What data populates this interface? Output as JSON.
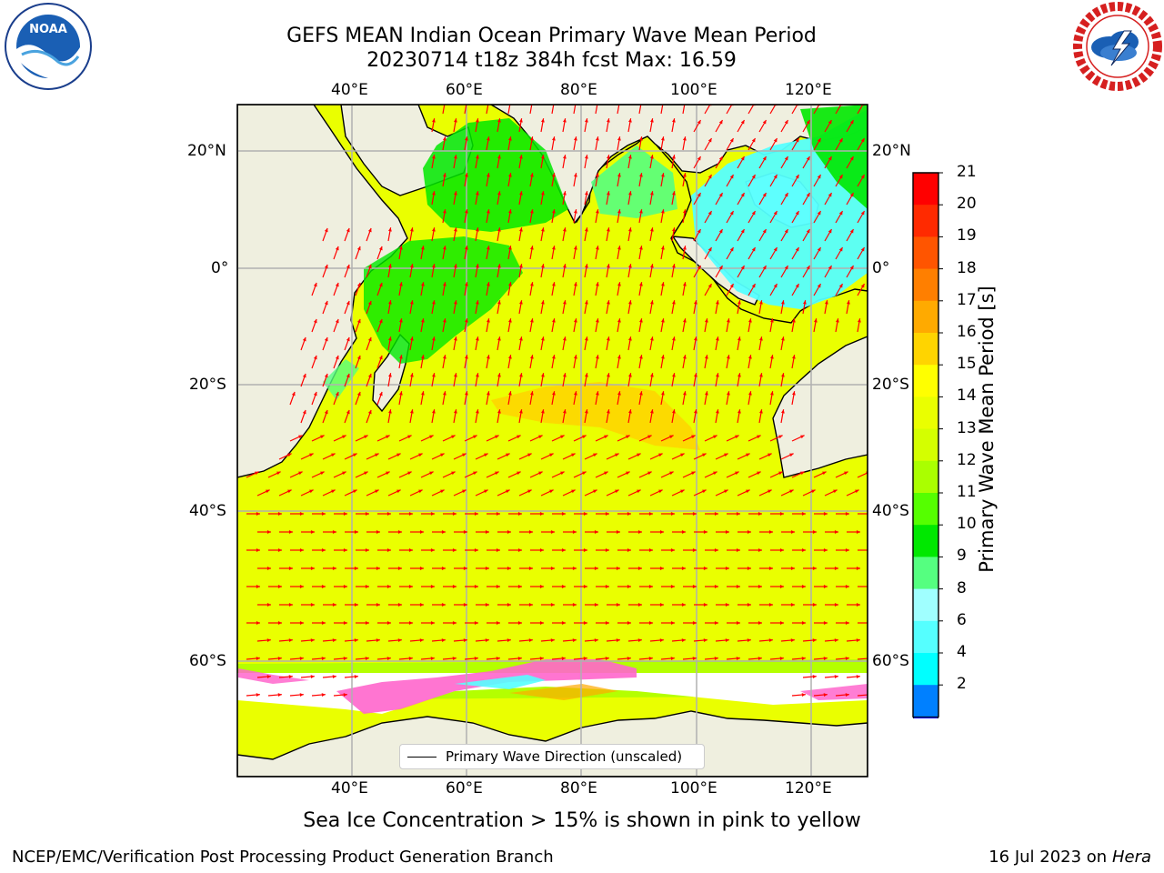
{
  "title": {
    "line1": "GEFS MEAN Indian Ocean Primary Wave Mean Period",
    "line2": "20230714 t18z 384h fcst   Max: 16.59"
  },
  "logos": {
    "left": {
      "name": "NOAA",
      "text": "NOAA",
      "ring_text": "NATIONAL OCEANIC AND ATMOSPHERIC ADMINISTRATION · U.S. DEPARTMENT OF COMMERCE"
    },
    "right": {
      "name": "National Weather Service",
      "ring_text": "NATIONAL WEATHER SERVICE"
    }
  },
  "map": {
    "top_lon_labels": [
      "40°E",
      "60°E",
      "80°E",
      "100°E",
      "120°E"
    ],
    "bottom_lon_labels": [
      "40°E",
      "60°E",
      "80°E",
      "100°E",
      "120°E"
    ],
    "left_lat_labels": [
      "20°N",
      "0°",
      "20°S",
      "40°S",
      "60°S"
    ],
    "right_lat_labels": [
      "20°N",
      "0°",
      "20°S",
      "40°S",
      "60°S"
    ],
    "legend_label": "Primary Wave Direction (unscaled)",
    "land_color": "#efefdf",
    "arrow_color": "#ff0000"
  },
  "colorbar": {
    "label": "Primary Wave Mean Period [s]",
    "ticks": [
      "21",
      "20",
      "19",
      "18",
      "17",
      "16",
      "15",
      "14",
      "13",
      "12",
      "11",
      "10",
      "9",
      "8",
      "6",
      "4",
      "2"
    ],
    "colors_top_to_bottom": [
      "#ff0000",
      "#ff2a00",
      "#ff5500",
      "#ff7f00",
      "#ffaa00",
      "#ffd400",
      "#ffff00",
      "#eaff00",
      "#d4ff00",
      "#aaff00",
      "#55ff00",
      "#00e800",
      "#55ff80",
      "#a0ffff",
      "#55ffff",
      "#00ffff",
      "#0080ff"
    ],
    "extend_color": "#0000ff"
  },
  "note": "Sea Ice Concentration > 15% is shown in pink to yellow",
  "footer": {
    "left": "NCEP/EMC/Verification Post Processing Product Generation Branch",
    "date": "16 Jul 2023 on ",
    "host": "Hera"
  }
}
